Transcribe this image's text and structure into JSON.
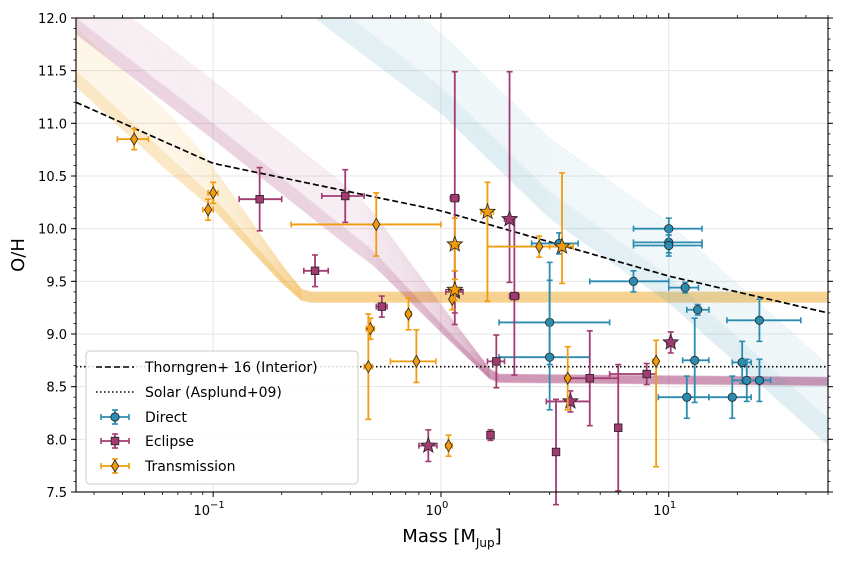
{
  "chart_data": {
    "type": "scatter",
    "xscale": "log",
    "xlim": [
      0.025,
      50
    ],
    "ylim": [
      7.5,
      12.0
    ],
    "xlabel": "Mass [M",
    "xlabel_sub": "Jup",
    "xlabel_close": "]",
    "ylabel": "O/H",
    "grid": true,
    "x_ticks": [
      {
        "value": 0.1,
        "base": "10",
        "exp": "−1"
      },
      {
        "value": 1,
        "base": "10",
        "exp": "0"
      },
      {
        "value": 10,
        "base": "10",
        "exp": "1"
      }
    ],
    "y_ticks": [
      "7.5",
      "8.0",
      "8.5",
      "9.0",
      "9.5",
      "10.0",
      "10.5",
      "11.0",
      "11.5",
      "12.0"
    ],
    "legend_position": "lower-left",
    "legend": [
      {
        "label": "Thorngren+ 16 (Interior)",
        "kind": "dashed"
      },
      {
        "label": "Solar (Asplund+09)",
        "kind": "dotted"
      },
      {
        "label": "Direct",
        "kind": "errorbar",
        "marker": "circle",
        "color": "#2b8cb0"
      },
      {
        "label": "Eclipse",
        "kind": "errorbar",
        "marker": "square",
        "color": "#a23b72"
      },
      {
        "label": "Transmission",
        "kind": "errorbar",
        "marker": "diamond",
        "color": "#f29b0c"
      }
    ],
    "reference_lines": {
      "thorngren": {
        "points": [
          [
            0.025,
            11.2
          ],
          [
            0.1,
            10.62
          ],
          [
            1,
            10.17
          ],
          [
            10,
            9.55
          ],
          [
            50,
            9.2
          ]
        ]
      },
      "solar": {
        "y": 8.69
      }
    },
    "model_bands": [
      {
        "name": "Transmission model",
        "color": "#f29b0c",
        "points": [
          [
            0.025,
            11.5
          ],
          [
            0.1,
            10.3
          ],
          [
            0.2,
            9.55
          ],
          [
            0.25,
            9.35
          ],
          [
            50,
            9.35
          ]
        ],
        "upper_extra": 0.4,
        "lower_extra": 0.15,
        "plateau_spread": 0.05
      },
      {
        "name": "Eclipse model",
        "color": "#a23b72",
        "points": [
          [
            0.025,
            12.0
          ],
          [
            0.1,
            11.0
          ],
          [
            0.5,
            9.8
          ],
          [
            1,
            9.1
          ],
          [
            1.7,
            8.58
          ],
          [
            50,
            8.55
          ]
        ],
        "upper_extra": 0.4,
        "lower_extra": 0.15,
        "plateau_spread": 0.04
      },
      {
        "name": "Direct model",
        "color": "#2b8cb0",
        "points": [
          [
            0.4,
            12.0
          ],
          [
            1,
            11.35
          ],
          [
            3,
            10.35
          ],
          [
            10,
            9.55
          ],
          [
            50,
            8.2
          ]
        ],
        "upper_extra": 0.5,
        "lower_extra": 0.25,
        "plateau_spread": 0.0
      }
    ],
    "series": [
      {
        "name": "Direct",
        "marker": "circle",
        "color": "#2b8cb0",
        "points": [
          {
            "x": 3.3,
            "y": 9.86,
            "xlo": 2.5,
            "xhi": 4.0,
            "ylo": 0.1,
            "yhi": 0.1
          },
          {
            "x": 3.0,
            "y": 9.11,
            "xlo": 1.8,
            "xhi": 5.5,
            "ylo": 0.4,
            "yhi": 0.4
          },
          {
            "x": 3.0,
            "y": 8.78,
            "xlo": 1.8,
            "xhi": 4.5,
            "ylo": 0.5,
            "yhi": 0.9
          },
          {
            "x": 7.0,
            "y": 9.5,
            "xlo": 4.5,
            "xhi": 10.0,
            "ylo": 0.1,
            "yhi": 0.1
          },
          {
            "x": 10.0,
            "y": 10.0,
            "xlo": 7.0,
            "xhi": 14.0,
            "ylo": 0.1,
            "yhi": 0.1
          },
          {
            "x": 10.0,
            "y": 9.87,
            "xlo": 7.0,
            "xhi": 14.0,
            "ylo": 0.1,
            "yhi": 0.1
          },
          {
            "x": 10.0,
            "y": 9.84,
            "xlo": 7.0,
            "xhi": 14.0,
            "ylo": 0.1,
            "yhi": 0.1
          },
          {
            "x": 11.8,
            "y": 9.44,
            "xlo": 10.0,
            "xhi": 13.5,
            "ylo": 0.05,
            "yhi": 0.05
          },
          {
            "x": 13.4,
            "y": 9.23,
            "xlo": 12.0,
            "xhi": 15.0,
            "ylo": 0.05,
            "yhi": 0.05
          },
          {
            "x": 13.0,
            "y": 8.75,
            "xlo": 11.5,
            "xhi": 15.0,
            "ylo": 0.4,
            "yhi": 0.4
          },
          {
            "x": 12.0,
            "y": 8.4,
            "xlo": 9.0,
            "xhi": 15.0,
            "ylo": 0.2,
            "yhi": 0.2
          },
          {
            "x": 19.0,
            "y": 8.4,
            "xlo": 15.0,
            "xhi": 23.0,
            "ylo": 0.2,
            "yhi": 0.2
          },
          {
            "x": 21.0,
            "y": 8.73,
            "xlo": 19.0,
            "xhi": 23.0,
            "ylo": 0.2,
            "yhi": 0.2
          },
          {
            "x": 22.0,
            "y": 8.56,
            "xlo": 19.0,
            "xhi": 26.0,
            "ylo": 0.2,
            "yhi": 0.2
          },
          {
            "x": 25.0,
            "y": 8.56,
            "xlo": 22.0,
            "xhi": 28.0,
            "ylo": 0.2,
            "yhi": 0.2
          },
          {
            "x": 25.0,
            "y": 9.13,
            "xlo": 18.0,
            "xhi": 38.0,
            "ylo": 0.2,
            "yhi": 0.2
          }
        ]
      },
      {
        "name": "Eclipse",
        "marker": "square",
        "color": "#a23b72",
        "points": [
          {
            "x": 0.16,
            "y": 10.28,
            "xlo": 0.13,
            "xhi": 0.2,
            "ylo": 0.3,
            "yhi": 0.3
          },
          {
            "x": 0.28,
            "y": 9.6,
            "xlo": 0.25,
            "xhi": 0.32,
            "ylo": 0.15,
            "yhi": 0.15
          },
          {
            "x": 0.38,
            "y": 10.31,
            "xlo": 0.3,
            "xhi": 0.46,
            "ylo": 0.25,
            "yhi": 0.25
          },
          {
            "x": 0.55,
            "y": 9.26,
            "xlo": 0.52,
            "xhi": 0.58,
            "ylo": 0.1,
            "yhi": 0.1
          },
          {
            "x": 1.15,
            "y": 10.29,
            "xlo": 1.1,
            "xhi": 1.2,
            "ylo": 1.2,
            "yhi": 1.2
          },
          {
            "x": 2.1,
            "y": 9.36,
            "xlo": 2.0,
            "xhi": 2.2,
            "ylo": 0.75,
            "yhi": 0.75
          },
          {
            "x": 1.75,
            "y": 8.74,
            "xlo": 1.6,
            "xhi": 1.9,
            "ylo": 0.25,
            "yhi": 0.25
          },
          {
            "x": 1.65,
            "y": 8.04,
            "xlo": 1.6,
            "xhi": 1.7,
            "ylo": 0.05,
            "yhi": 0.05
          },
          {
            "x": 3.2,
            "y": 7.88,
            "xlo": 3.1,
            "xhi": 3.3,
            "ylo": 0.5,
            "yhi": 0.5
          },
          {
            "x": 4.5,
            "y": 8.58,
            "xlo": 3.5,
            "xhi": 6.0,
            "ylo": 0.45,
            "yhi": 0.45
          },
          {
            "x": 6.0,
            "y": 8.11,
            "xlo": 5.9,
            "xhi": 6.1,
            "ylo": 0.6,
            "yhi": 0.6
          },
          {
            "x": 8.0,
            "y": 8.62,
            "xlo": 5.5,
            "xhi": 8.8,
            "ylo": 0.1,
            "yhi": 0.1
          }
        ]
      },
      {
        "name": "Eclipse stars",
        "marker": "star",
        "color": "#a23b72",
        "points": [
          {
            "x": 0.88,
            "y": 7.94,
            "xlo": 0.8,
            "xhi": 0.96,
            "ylo": 0.15,
            "yhi": 0.15
          },
          {
            "x": 1.15,
            "y": 9.4,
            "xlo": 1.05,
            "xhi": 1.25,
            "ylo": 0.2,
            "yhi": 0.2
          },
          {
            "x": 2.0,
            "y": 10.09,
            "xlo": 1.9,
            "xhi": 2.1,
            "ylo": 0.6,
            "yhi": 1.4
          },
          {
            "x": 3.7,
            "y": 8.36,
            "xlo": 2.9,
            "xhi": 4.5,
            "ylo": 0.1,
            "yhi": 0.1
          },
          {
            "x": 10.2,
            "y": 8.92,
            "xlo": 9.8,
            "xhi": 10.6,
            "ylo": 0.1,
            "yhi": 0.1
          }
        ]
      },
      {
        "name": "Transmission",
        "marker": "diamond",
        "color": "#f29b0c",
        "points": [
          {
            "x": 0.045,
            "y": 10.85,
            "xlo": 0.038,
            "xhi": 0.052,
            "ylo": 0.1,
            "yhi": 0.1
          },
          {
            "x": 0.095,
            "y": 10.18,
            "xlo": 0.09,
            "xhi": 0.1,
            "ylo": 0.1,
            "yhi": 0.1
          },
          {
            "x": 0.1,
            "y": 10.34,
            "xlo": 0.095,
            "xhi": 0.105,
            "ylo": 0.1,
            "yhi": 0.1
          },
          {
            "x": 0.52,
            "y": 10.04,
            "xlo": 0.22,
            "xhi": 1.0,
            "ylo": 0.3,
            "yhi": 0.3
          },
          {
            "x": 0.49,
            "y": 9.05,
            "xlo": 0.47,
            "xhi": 0.51,
            "ylo": 0.1,
            "yhi": 0.1
          },
          {
            "x": 0.48,
            "y": 8.69,
            "xlo": 0.46,
            "xhi": 0.5,
            "ylo": 0.5,
            "yhi": 0.5
          },
          {
            "x": 0.72,
            "y": 9.19,
            "xlo": 0.7,
            "xhi": 0.74,
            "ylo": 0.15,
            "yhi": 0.15
          },
          {
            "x": 0.78,
            "y": 8.74,
            "xlo": 0.6,
            "xhi": 0.95,
            "ylo": 0.2,
            "yhi": 0.3
          },
          {
            "x": 1.08,
            "y": 7.94,
            "xlo": 1.05,
            "xhi": 1.12,
            "ylo": 0.1,
            "yhi": 0.1
          },
          {
            "x": 1.12,
            "y": 9.33,
            "xlo": 1.1,
            "xhi": 1.15,
            "ylo": 0.1,
            "yhi": 0.1
          },
          {
            "x": 2.7,
            "y": 9.83,
            "xlo": 1.6,
            "xhi": 3.8,
            "ylo": 0.1,
            "yhi": 0.1
          },
          {
            "x": 3.6,
            "y": 8.58,
            "xlo": 3.5,
            "xhi": 3.7,
            "ylo": 0.3,
            "yhi": 0.3
          },
          {
            "x": 8.8,
            "y": 8.74,
            "xlo": 8.5,
            "xhi": 9.0,
            "ylo": 1.0,
            "yhi": 0.2
          }
        ]
      },
      {
        "name": "Transmission stars",
        "marker": "star",
        "color": "#f29b0c",
        "points": [
          {
            "x": 1.15,
            "y": 9.85,
            "xlo": 1.1,
            "xhi": 1.2,
            "ylo": 0.25,
            "yhi": 0.25
          },
          {
            "x": 1.15,
            "y": 9.42,
            "xlo": 1.1,
            "xhi": 1.2,
            "ylo": 0.1,
            "yhi": 0.1
          },
          {
            "x": 1.6,
            "y": 10.16,
            "xlo": 1.5,
            "xhi": 1.7,
            "ylo": 0.85,
            "yhi": 0.28
          },
          {
            "x": 3.4,
            "y": 9.83,
            "xlo": 3.0,
            "xhi": 3.8,
            "ylo": 0.35,
            "yhi": 0.7
          }
        ]
      }
    ]
  }
}
